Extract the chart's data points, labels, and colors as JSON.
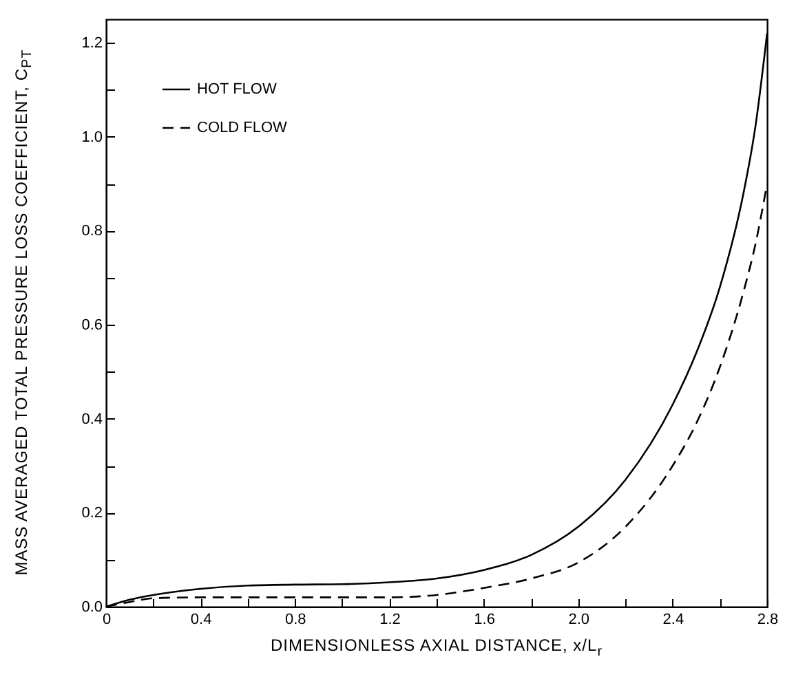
{
  "chart_data": {
    "type": "line",
    "xlabel": "DIMENSIONLESS AXIAL DISTANCE, x/L$_{r}$",
    "ylabel": "MASS AVERAGED TOTAL PRESSURE LOSS COEFFICIENT, C$_{PT}$",
    "x": [
      0,
      0.1,
      0.2,
      0.4,
      0.6,
      0.8,
      1.0,
      1.2,
      1.4,
      1.6,
      1.8,
      2.0,
      2.2,
      2.4,
      2.5,
      2.6,
      2.7,
      2.75,
      2.8
    ],
    "series": [
      {
        "name": "HOT FLOW",
        "color": "#000000",
        "line_style": "solid",
        "values": [
          0,
          0.015,
          0.025,
          0.038,
          0.045,
          0.047,
          0.048,
          0.052,
          0.06,
          0.078,
          0.11,
          0.17,
          0.27,
          0.43,
          0.54,
          0.68,
          0.88,
          1.02,
          1.22
        ]
      },
      {
        "name": "COLD FLOW",
        "color": "#000000",
        "line_style": "dashed",
        "values": [
          0,
          0.01,
          0.018,
          0.02,
          0.02,
          0.02,
          0.02,
          0.02,
          0.025,
          0.04,
          0.06,
          0.094,
          0.17,
          0.3,
          0.39,
          0.51,
          0.67,
          0.77,
          0.9
        ]
      }
    ],
    "xlim": [
      0,
      2.8
    ],
    "ylim": [
      0,
      1.25
    ],
    "xticks": [
      0,
      {
        "value": 0.2,
        "label": null
      },
      0.4,
      {
        "value": 0.6,
        "label": null
      },
      0.8,
      {
        "value": 1.0,
        "label": null
      },
      1.2,
      {
        "value": 1.4,
        "label": null
      },
      1.6,
      {
        "value": 1.8,
        "label": null
      },
      {
        "value": 2.0,
        "label": "2.0"
      },
      {
        "value": 2.2,
        "label": null
      },
      2.4,
      {
        "value": 2.6,
        "label": null
      },
      2.8
    ],
    "yticks": [
      {
        "value": 0,
        "label": "0.0"
      },
      {
        "value": 0.1,
        "label": null
      },
      0.2,
      {
        "value": 0.3,
        "label": null
      },
      0.4,
      {
        "value": 0.5,
        "label": null
      },
      0.6,
      {
        "value": 0.7,
        "label": null
      },
      0.8,
      {
        "value": 0.9,
        "label": null
      },
      {
        "value": 1.0,
        "label": "1.0"
      },
      {
        "value": 1.1,
        "label": null
      },
      1.2
    ],
    "grid": false,
    "legend": "top left",
    "marker": "none"
  }
}
